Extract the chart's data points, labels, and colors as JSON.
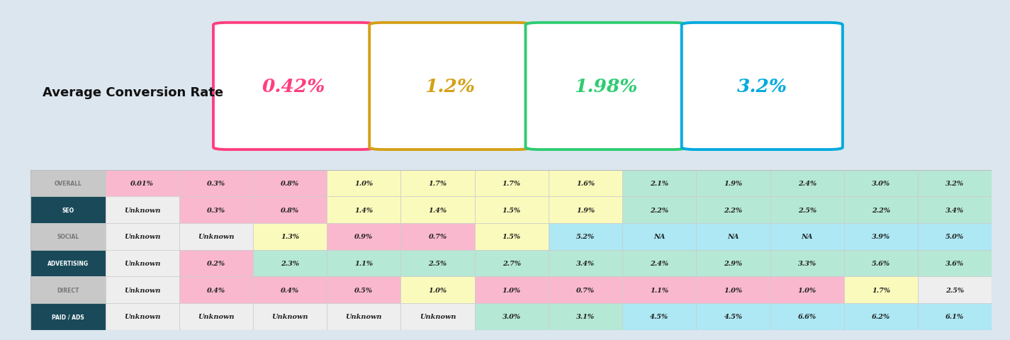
{
  "title": "Average Conversion Rate",
  "kpi_values": [
    "0.42%",
    "1.2%",
    "1.98%",
    "3.2%"
  ],
  "kpi_colors": [
    "#FF3E7F",
    "#D4A017",
    "#2ECC71",
    "#00AADD"
  ],
  "kpi_border_colors": [
    "#FF3E7F",
    "#D4A017",
    "#2ECC71",
    "#00AADD"
  ],
  "row_labels": [
    "OVERALL",
    "SEO",
    "SOCIAL",
    "ADVERTISING",
    "DIRECT",
    "PAID / ADS"
  ],
  "row_label_bg": [
    "#c8c8c8",
    "#1a4a5a",
    "#c8c8c8",
    "#1a4a5a",
    "#c8c8c8",
    "#1a4a5a"
  ],
  "row_label_color": [
    "#777777",
    "#ffffff",
    "#777777",
    "#ffffff",
    "#777777",
    "#ffffff"
  ],
  "table_data": [
    [
      "0.01%",
      "0.3%",
      "0.8%",
      "1.0%",
      "1.7%",
      "1.7%",
      "1.6%",
      "2.1%",
      "1.9%",
      "2.4%",
      "3.0%",
      "3.2%"
    ],
    [
      "Unknown",
      "0.3%",
      "0.8%",
      "1.4%",
      "1.4%",
      "1.5%",
      "1.9%",
      "2.2%",
      "2.2%",
      "2.5%",
      "2.2%",
      "3.4%"
    ],
    [
      "Unknown",
      "Unknown",
      "1.3%",
      "0.9%",
      "0.7%",
      "1.5%",
      "5.2%",
      "NA",
      "NA",
      "NA",
      "3.9%",
      "5.0%"
    ],
    [
      "Unknown",
      "0.2%",
      "2.3%",
      "1.1%",
      "2.5%",
      "2.7%",
      "3.4%",
      "2.4%",
      "2.9%",
      "3.3%",
      "5.6%",
      "3.6%"
    ],
    [
      "Unknown",
      "0.4%",
      "0.4%",
      "0.5%",
      "1.0%",
      "1.0%",
      "0.7%",
      "1.1%",
      "1.0%",
      "1.0%",
      "1.7%",
      "2.5%"
    ],
    [
      "Unknown",
      "Unknown",
      "Unknown",
      "Unknown",
      "Unknown",
      "3.0%",
      "3.1%",
      "4.5%",
      "4.5%",
      "6.6%",
      "6.2%",
      "6.1%"
    ]
  ],
  "cell_colors": [
    [
      "#F9B8CE",
      "#F9B8CE",
      "#F9B8CE",
      "#FAFABC",
      "#FAFABC",
      "#FAFABC",
      "#FAFABC",
      "#B5E8D5",
      "#B5E8D5",
      "#B5E8D5",
      "#B5E8D5",
      "#B5E8D5"
    ],
    [
      "#eeeeee",
      "#F9B8CE",
      "#F9B8CE",
      "#FAFABC",
      "#FAFABC",
      "#FAFABC",
      "#FAFABC",
      "#B5E8D5",
      "#B5E8D5",
      "#B5E8D5",
      "#B5E8D5",
      "#B5E8D5"
    ],
    [
      "#eeeeee",
      "#eeeeee",
      "#FAFABC",
      "#F9B8CE",
      "#F9B8CE",
      "#FAFABC",
      "#ADE8F4",
      "#ADE8F4",
      "#ADE8F4",
      "#ADE8F4",
      "#ADE8F4",
      "#ADE8F4"
    ],
    [
      "#eeeeee",
      "#F9B8CE",
      "#B5E8D5",
      "#B5E8D5",
      "#B5E8D5",
      "#B5E8D5",
      "#B5E8D5",
      "#B5E8D5",
      "#B5E8D5",
      "#B5E8D5",
      "#B5E8D5",
      "#B5E8D5"
    ],
    [
      "#eeeeee",
      "#F9B8CE",
      "#F9B8CE",
      "#F9B8CE",
      "#FAFABC",
      "#F9B8CE",
      "#F9B8CE",
      "#F9B8CE",
      "#F9B8CE",
      "#F9B8CE",
      "#FAFABC",
      "#eeeeee"
    ],
    [
      "#eeeeee",
      "#eeeeee",
      "#eeeeee",
      "#eeeeee",
      "#eeeeee",
      "#B5E8D5",
      "#B5E8D5",
      "#ADE8F4",
      "#ADE8F4",
      "#ADE8F4",
      "#ADE8F4",
      "#ADE8F4"
    ]
  ],
  "outer_bg": "#dce6ee",
  "card_bg": "#ffffff",
  "fig_w": 14.25,
  "fig_h": 4.81
}
